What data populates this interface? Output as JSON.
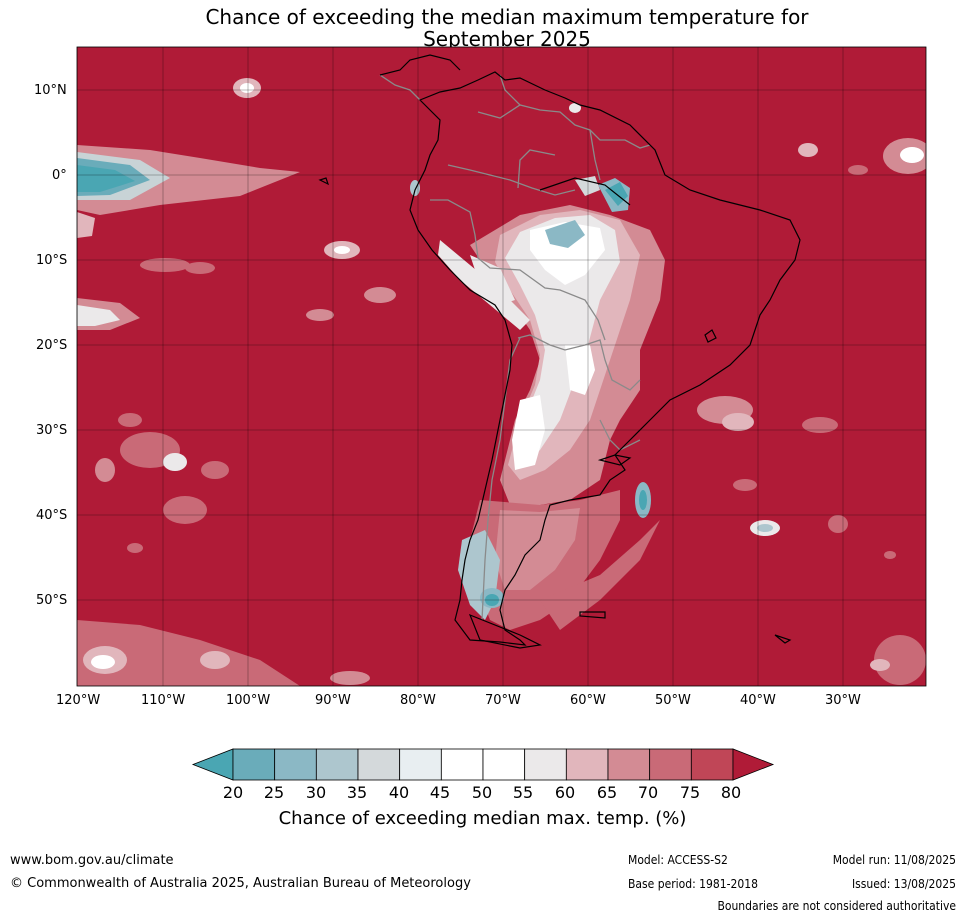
{
  "title": {
    "line1": "Chance of exceeding the median maximum temperature for",
    "line2": "September 2025"
  },
  "map": {
    "lat_labels": [
      "10°N",
      "0°",
      "10°S",
      "20°S",
      "30°S",
      "40°S",
      "50°S"
    ],
    "lon_labels": [
      "120°W",
      "110°W",
      "100°W",
      "90°W",
      "80°W",
      "70°W",
      "60°W",
      "50°W",
      "40°W",
      "30°W"
    ],
    "background_color": "#b01b37",
    "grid": true,
    "extent": {
      "lon_min": -120,
      "lon_max": -20,
      "lat_min": -60,
      "lat_max": 15
    }
  },
  "colorbar": {
    "ticks": [
      "20",
      "25",
      "30",
      "35",
      "40",
      "45",
      "50",
      "55",
      "60",
      "65",
      "70",
      "75",
      "80"
    ],
    "colors": [
      "#4aa6b3",
      "#6aacba",
      "#8bb8c5",
      "#adc6ce",
      "#d4d9db",
      "#e8eef1",
      "#ffffff",
      "#ffffff",
      "#ebe9ea",
      "#e1b6bc",
      "#d38b94",
      "#c96a77",
      "#c04657",
      "#b01b37"
    ],
    "label": "Chance of exceeding median max. temp. (%)"
  },
  "footer": {
    "website": "www.bom.gov.au/climate",
    "copyright": "© Commonwealth of Australia 2025, Australian Bureau of Meteorology",
    "model": "Model: ACCESS-S2",
    "base_period": "Base period: 1981-2018",
    "model_run": "Model run: 11/08/2025",
    "issued": "Issued: 13/08/2025",
    "disclaimer": "Boundaries are not considered authoritative"
  }
}
